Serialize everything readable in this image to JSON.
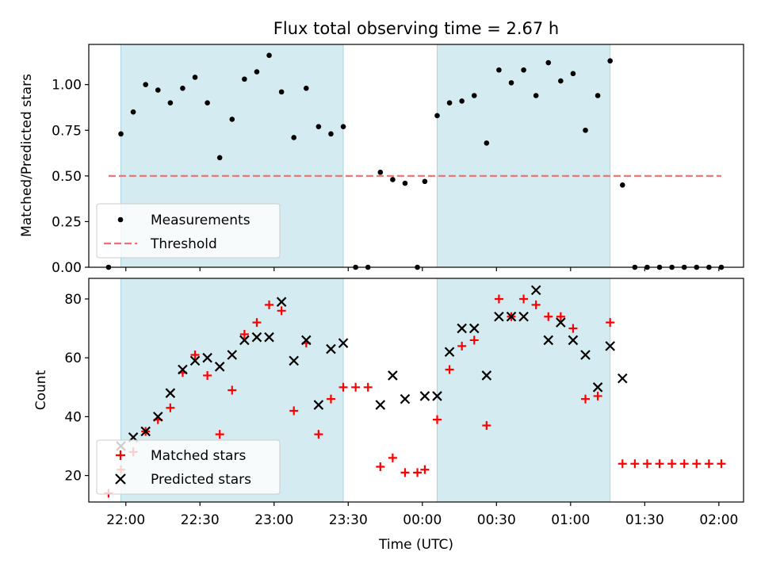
{
  "chart_data": [
    {
      "type": "scatter",
      "title": "Flux total observing time = 2.67 h",
      "xlabel": "",
      "ylabel": "Matched/Predicted stars",
      "xlim": [
        "21:45",
        "02:10"
      ],
      "ylim": [
        0,
        1.22
      ],
      "yticks": [
        "0.00",
        "0.25",
        "0.50",
        "0.75",
        "1.00"
      ],
      "ytick_values": [
        0,
        0.25,
        0.5,
        0.75,
        1.0
      ],
      "shaded_intervals": [
        [
          "21:58",
          "23:28"
        ],
        [
          "00:06",
          "01:16"
        ]
      ],
      "legend_position": "lower-left",
      "series": [
        {
          "name": "Measurements",
          "marker": "dot",
          "color": "#000000",
          "points": [
            [
              "21:53",
              0.0
            ],
            [
              "21:58",
              0.73
            ],
            [
              "22:03",
              0.85
            ],
            [
              "22:08",
              1.0
            ],
            [
              "22:13",
              0.97
            ],
            [
              "22:18",
              0.9
            ],
            [
              "22:23",
              0.98
            ],
            [
              "22:28",
              1.04
            ],
            [
              "22:33",
              0.9
            ],
            [
              "22:38",
              0.6
            ],
            [
              "22:43",
              0.81
            ],
            [
              "22:48",
              1.03
            ],
            [
              "22:53",
              1.07
            ],
            [
              "22:58",
              1.16
            ],
            [
              "23:03",
              0.96
            ],
            [
              "23:08",
              0.71
            ],
            [
              "23:13",
              0.98
            ],
            [
              "23:18",
              0.77
            ],
            [
              "23:23",
              0.73
            ],
            [
              "23:28",
              0.77
            ],
            [
              "23:33",
              0.0
            ],
            [
              "23:38",
              0.0
            ],
            [
              "23:43",
              0.52
            ],
            [
              "23:48",
              0.48
            ],
            [
              "23:53",
              0.46
            ],
            [
              "23:58",
              0.0
            ],
            [
              "00:01",
              0.47
            ],
            [
              "00:06",
              0.83
            ],
            [
              "00:11",
              0.9
            ],
            [
              "00:16",
              0.91
            ],
            [
              "00:21",
              0.94
            ],
            [
              "00:26",
              0.68
            ],
            [
              "00:31",
              1.08
            ],
            [
              "00:36",
              1.01
            ],
            [
              "00:41",
              1.08
            ],
            [
              "00:46",
              0.94
            ],
            [
              "00:51",
              1.12
            ],
            [
              "00:56",
              1.02
            ],
            [
              "01:01",
              1.06
            ],
            [
              "01:06",
              0.75
            ],
            [
              "01:11",
              0.94
            ],
            [
              "01:16",
              1.13
            ],
            [
              "01:21",
              0.45
            ],
            [
              "01:26",
              0.0
            ],
            [
              "01:31",
              0.0
            ],
            [
              "01:36",
              0.0
            ],
            [
              "01:41",
              0.0
            ],
            [
              "01:46",
              0.0
            ],
            [
              "01:51",
              0.0
            ],
            [
              "01:56",
              0.0
            ],
            [
              "02:01",
              0.0
            ]
          ]
        },
        {
          "name": "Threshold",
          "style": "dashed",
          "color": "#f07070",
          "points": [
            [
              "21:53",
              0.5
            ],
            [
              "02:01",
              0.5
            ]
          ]
        }
      ]
    },
    {
      "type": "scatter",
      "title": "",
      "xlabel": "Time (UTC)",
      "ylabel": "Count",
      "xlim": [
        "21:45",
        "02:10"
      ],
      "ylim": [
        11,
        87
      ],
      "xticks": [
        "22:00",
        "22:30",
        "23:00",
        "23:30",
        "00:00",
        "00:30",
        "01:00",
        "01:30",
        "02:00"
      ],
      "yticks": [
        "20",
        "40",
        "60",
        "80"
      ],
      "ytick_values": [
        20,
        40,
        60,
        80
      ],
      "shaded_intervals": [
        [
          "21:58",
          "23:28"
        ],
        [
          "00:06",
          "01:16"
        ]
      ],
      "legend_position": "lower-left",
      "series": [
        {
          "name": "Matched stars",
          "marker": "plus",
          "color": "#ff0000",
          "points": [
            [
              "21:53",
              14
            ],
            [
              "21:58",
              22
            ],
            [
              "22:03",
              28
            ],
            [
              "22:08",
              35
            ],
            [
              "22:13",
              39
            ],
            [
              "22:18",
              43
            ],
            [
              "22:23",
              55
            ],
            [
              "22:28",
              61
            ],
            [
              "22:33",
              54
            ],
            [
              "22:38",
              34
            ],
            [
              "22:43",
              49
            ],
            [
              "22:48",
              68
            ],
            [
              "22:53",
              72
            ],
            [
              "22:58",
              78
            ],
            [
              "23:03",
              76
            ],
            [
              "23:08",
              42
            ],
            [
              "23:13",
              65
            ],
            [
              "23:18",
              34
            ],
            [
              "23:23",
              46
            ],
            [
              "23:28",
              50
            ],
            [
              "23:33",
              50
            ],
            [
              "23:38",
              50
            ],
            [
              "23:43",
              23
            ],
            [
              "23:48",
              26
            ],
            [
              "23:53",
              21
            ],
            [
              "23:58",
              21
            ],
            [
              "00:01",
              22
            ],
            [
              "00:06",
              39
            ],
            [
              "00:11",
              56
            ],
            [
              "00:16",
              64
            ],
            [
              "00:21",
              66
            ],
            [
              "00:26",
              37
            ],
            [
              "00:31",
              80
            ],
            [
              "00:36",
              74
            ],
            [
              "00:41",
              80
            ],
            [
              "00:46",
              78
            ],
            [
              "00:51",
              74
            ],
            [
              "00:56",
              74
            ],
            [
              "01:01",
              70
            ],
            [
              "01:06",
              46
            ],
            [
              "01:11",
              47
            ],
            [
              "01:16",
              72
            ],
            [
              "01:21",
              24
            ],
            [
              "01:26",
              24
            ],
            [
              "01:31",
              24
            ],
            [
              "01:36",
              24
            ],
            [
              "01:41",
              24
            ],
            [
              "01:46",
              24
            ],
            [
              "01:51",
              24
            ],
            [
              "01:56",
              24
            ],
            [
              "02:01",
              24
            ]
          ]
        },
        {
          "name": "Predicted stars",
          "marker": "x",
          "color": "#000000",
          "points": [
            [
              "21:58",
              30
            ],
            [
              "22:03",
              33
            ],
            [
              "22:08",
              35
            ],
            [
              "22:13",
              40
            ],
            [
              "22:18",
              48
            ],
            [
              "22:23",
              56
            ],
            [
              "22:28",
              59
            ],
            [
              "22:33",
              60
            ],
            [
              "22:38",
              57
            ],
            [
              "22:43",
              61
            ],
            [
              "22:48",
              66
            ],
            [
              "22:53",
              67
            ],
            [
              "22:58",
              67
            ],
            [
              "23:03",
              79
            ],
            [
              "23:08",
              59
            ],
            [
              "23:13",
              66
            ],
            [
              "23:18",
              44
            ],
            [
              "23:23",
              63
            ],
            [
              "23:28",
              65
            ],
            [
              "23:43",
              44
            ],
            [
              "23:48",
              54
            ],
            [
              "23:53",
              46
            ],
            [
              "00:01",
              47
            ],
            [
              "00:06",
              47
            ],
            [
              "00:11",
              62
            ],
            [
              "00:16",
              70
            ],
            [
              "00:21",
              70
            ],
            [
              "00:26",
              54
            ],
            [
              "00:31",
              74
            ],
            [
              "00:36",
              74
            ],
            [
              "00:41",
              74
            ],
            [
              "00:46",
              83
            ],
            [
              "00:51",
              66
            ],
            [
              "00:56",
              72
            ],
            [
              "01:01",
              66
            ],
            [
              "01:06",
              61
            ],
            [
              "01:11",
              50
            ],
            [
              "01:16",
              64
            ],
            [
              "01:21",
              53
            ]
          ]
        }
      ]
    }
  ],
  "colors": {
    "shade": "#d4ebf1",
    "shade_edge": "#a9d5e2",
    "matched": "#ff0000",
    "threshold": "#f07070"
  }
}
